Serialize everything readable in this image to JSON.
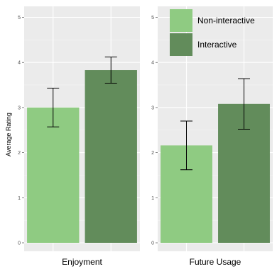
{
  "chart_data": {
    "type": "bar",
    "ylabel": "Average Rating",
    "ylim": [
      0,
      5.3
    ],
    "yticks": [
      0,
      1,
      2,
      3,
      4,
      5
    ],
    "grid": true,
    "legend_position": "top-right",
    "series": [
      {
        "name": "Non-interactive",
        "color": "#8fcb82"
      },
      {
        "name": "Interactive",
        "color": "#628c5b"
      }
    ],
    "panels": [
      {
        "xlabel": "Enjoyment",
        "values": [
          3.0,
          3.83
        ],
        "errors": [
          [
            2.57,
            3.43
          ],
          [
            3.54,
            4.12
          ]
        ]
      },
      {
        "xlabel": "Future Usage",
        "values": [
          2.16,
          3.08
        ],
        "errors": [
          [
            1.62,
            2.7
          ],
          [
            2.52,
            3.64
          ]
        ]
      }
    ]
  }
}
